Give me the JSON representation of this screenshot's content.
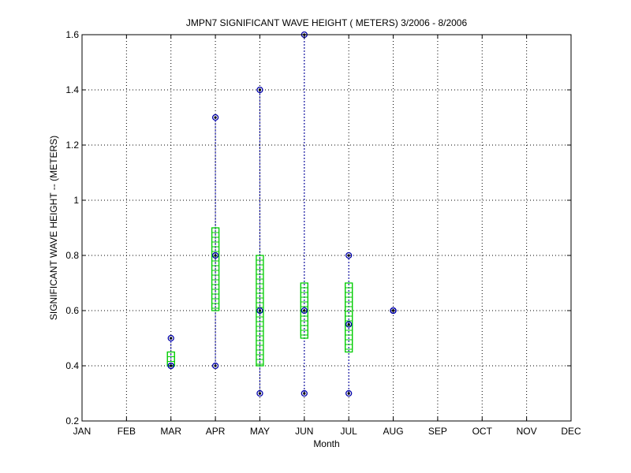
{
  "chart_data": {
    "type": "box",
    "title": "JMPN7  SIGNIFICANT WAVE HEIGHT ( METERS) 3/2006 - 8/2006",
    "xlabel": "Month",
    "ylabel": "SIGNIFICANT WAVE HEIGHT -- (METERS)",
    "categories": [
      "JAN",
      "FEB",
      "MAR",
      "APR",
      "MAY",
      "JUN",
      "JUL",
      "AUG",
      "SEP",
      "OCT",
      "NOV",
      "DEC"
    ],
    "ylim": [
      0.2,
      1.6
    ],
    "yticks": [
      "0.2",
      "0.4",
      "0.6",
      "0.8",
      "1",
      "1.2",
      "1.4",
      "1.6"
    ],
    "grid": true,
    "colors": {
      "box": "#00cc00",
      "whisker": "#0000aa",
      "marker": "#000000"
    },
    "series": [
      {
        "month": "MAR",
        "min": 0.4,
        "q1": 0.4,
        "median": 0.4,
        "q3": 0.45,
        "max": 0.5
      },
      {
        "month": "APR",
        "min": 0.4,
        "q1": 0.6,
        "median": 0.8,
        "q3": 0.9,
        "max": 1.3
      },
      {
        "month": "MAY",
        "min": 0.3,
        "q1": 0.4,
        "median": 0.6,
        "q3": 0.8,
        "max": 1.4
      },
      {
        "month": "JUN",
        "min": 0.3,
        "q1": 0.5,
        "median": 0.6,
        "q3": 0.7,
        "max": 1.6
      },
      {
        "month": "JUL",
        "min": 0.3,
        "q1": 0.45,
        "median": 0.55,
        "q3": 0.7,
        "max": 0.8
      },
      {
        "month": "AUG",
        "min": 0.6,
        "q1": 0.6,
        "median": 0.6,
        "q3": 0.6,
        "max": 0.6
      }
    ]
  }
}
